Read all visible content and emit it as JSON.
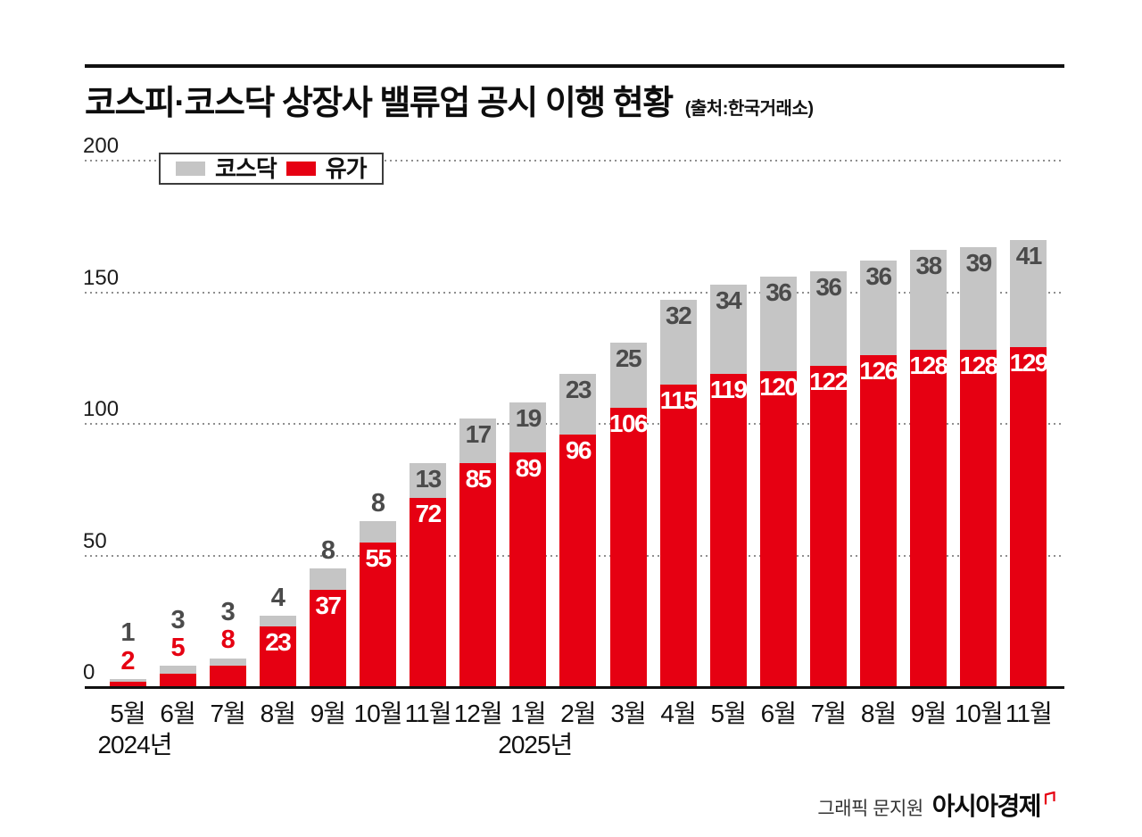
{
  "title": "코스피·코스닥 상장사 밸류업 공시 이행 현황",
  "source": "(출처:한국거래소)",
  "legend": {
    "items": [
      {
        "label": "코스닥",
        "color": "#c5c5c5"
      },
      {
        "label": "유가",
        "color": "#e60012"
      }
    ]
  },
  "footer": {
    "credit": "그래픽 문지원",
    "brand": "아시아경제"
  },
  "colors": {
    "kospi_red": "#e60012",
    "kosdaq_gray": "#c5c5c5",
    "gray_value_text": "#4b4b4b",
    "axis_black": "#111111"
  },
  "chart_data": {
    "type": "bar",
    "stacked": true,
    "title": "코스피·코스닥 상장사 밸류업 공시 이행 현황",
    "xlabel": "",
    "ylabel": "",
    "ylim": [
      0,
      200
    ],
    "yticks": [
      0,
      50,
      100,
      150,
      200
    ],
    "grid": "dotted-horizontal",
    "legend_position": "top-left",
    "categories": [
      "5월",
      "6월",
      "7월",
      "8월",
      "9월",
      "10월",
      "11월",
      "12월",
      "1월",
      "2월",
      "3월",
      "4월",
      "5월",
      "6월",
      "7월",
      "8월",
      "9월",
      "10월",
      "11월"
    ],
    "year_markers": [
      {
        "label": "2024년",
        "category_index": 0
      },
      {
        "label": "2025년",
        "category_index": 8
      }
    ],
    "series": [
      {
        "name": "유가",
        "color": "#e60012",
        "values": [
          2,
          5,
          8,
          23,
          37,
          55,
          72,
          85,
          89,
          96,
          106,
          115,
          119,
          120,
          122,
          126,
          128,
          128,
          129
        ]
      },
      {
        "name": "코스닥",
        "color": "#c5c5c5",
        "values": [
          1,
          3,
          3,
          4,
          8,
          8,
          13,
          17,
          19,
          23,
          25,
          32,
          34,
          36,
          36,
          36,
          38,
          39,
          41
        ]
      }
    ]
  }
}
